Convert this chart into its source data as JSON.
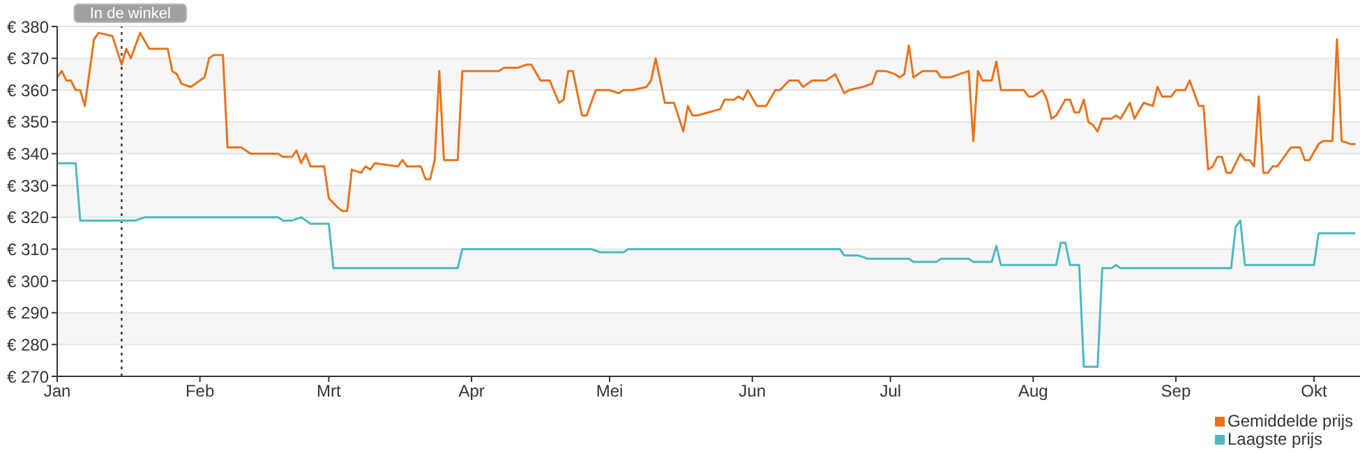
{
  "chart_data": {
    "type": "line",
    "xlim": [
      "--01-01",
      "--10-11"
    ],
    "ylim": [
      270,
      380
    ],
    "xticks": [
      {
        "value": "--01-01",
        "label": "Jan"
      },
      {
        "value": "--02-01",
        "label": "Feb"
      },
      {
        "value": "--03-01",
        "label": "Mrt"
      },
      {
        "value": "--04-01",
        "label": "Apr"
      },
      {
        "value": "--05-01",
        "label": "Mei"
      },
      {
        "value": "--06-01",
        "label": "Jun"
      },
      {
        "value": "--07-01",
        "label": "Jul"
      },
      {
        "value": "--08-01",
        "label": "Aug"
      },
      {
        "value": "--09-01",
        "label": "Sep"
      },
      {
        "value": "--10-01",
        "label": "Okt"
      }
    ],
    "yticks": [
      {
        "value": 270,
        "label": "€ 270"
      },
      {
        "value": 280,
        "label": "€ 280"
      },
      {
        "value": 290,
        "label": "€ 290"
      },
      {
        "value": 300,
        "label": "€ 300"
      },
      {
        "value": 310,
        "label": "€ 310"
      },
      {
        "value": 320,
        "label": "€ 320"
      },
      {
        "value": 330,
        "label": "€ 330"
      },
      {
        "value": 340,
        "label": "€ 340"
      },
      {
        "value": 350,
        "label": "€ 350"
      },
      {
        "value": 360,
        "label": "€ 360"
      },
      {
        "value": 370,
        "label": "€ 370"
      },
      {
        "value": 380,
        "label": "€ 380"
      }
    ],
    "grid": "y",
    "legend": "bottom right",
    "marker": "none",
    "line_style": "solid",
    "ref_lines": [
      {
        "axis": "x",
        "value": "--01-15",
        "label": "In de winkel",
        "color": "#333333",
        "line_style": "dotted"
      }
    ],
    "series": [
      {
        "name": "Gemiddelde prijs",
        "color": "#e8731c",
        "x": [
          "--01-01",
          "--01-02",
          "--01-03",
          "--01-04",
          "--01-05",
          "--01-06",
          "--01-07",
          "--01-09",
          "--01-10",
          "--01-13",
          "--01-15",
          "--01-16",
          "--01-17",
          "--01-18",
          "--01-19",
          "--01-21",
          "--01-25",
          "--01-26",
          "--01-27",
          "--01-28",
          "--01-30",
          "--02-01",
          "--02-02",
          "--02-03",
          "--02-04",
          "--02-06",
          "--02-07",
          "--02-10",
          "--02-12",
          "--02-18",
          "--02-19",
          "--02-21",
          "--02-22",
          "--02-23",
          "--02-24",
          "--02-25",
          "--02-28",
          "--03-01",
          "--03-03",
          "--03-04",
          "--03-05",
          "--03-06",
          "--03-08",
          "--03-09",
          "--03-10",
          "--03-11",
          "--03-16",
          "--03-17",
          "--03-18",
          "--03-21",
          "--03-22",
          "--03-23",
          "--03-24",
          "--03-25",
          "--03-26",
          "--03-29",
          "--03-30",
          "--04-07",
          "--04-08",
          "--04-11",
          "--04-13",
          "--04-14",
          "--04-16",
          "--04-18",
          "--04-20",
          "--04-21",
          "--04-22",
          "--04-23",
          "--04-25",
          "--04-26",
          "--04-28",
          "--05-01",
          "--05-03",
          "--05-04",
          "--05-06",
          "--05-09",
          "--05-10",
          "--05-11",
          "--05-13",
          "--05-15",
          "--05-17",
          "--05-18",
          "--05-19",
          "--05-20",
          "--05-25",
          "--05-26",
          "--05-28",
          "--05-29",
          "--05-30",
          "--05-31",
          "--06-02",
          "--06-04",
          "--06-06",
          "--06-07",
          "--06-09",
          "--06-11",
          "--06-12",
          "--06-14",
          "--06-17",
          "--06-19",
          "--06-21",
          "--06-22",
          "--06-25",
          "--06-27",
          "--06-28",
          "--06-30",
          "--07-02",
          "--07-03",
          "--07-04",
          "--07-05",
          "--07-06",
          "--07-08",
          "--07-11",
          "--07-12",
          "--07-14",
          "--07-16",
          "--07-18",
          "--07-19",
          "--07-20",
          "--07-21",
          "--07-23",
          "--07-24",
          "--07-25",
          "--07-30",
          "--07-31",
          "--08-01",
          "--08-03",
          "--08-04",
          "--08-05",
          "--08-06",
          "--08-08",
          "--08-09",
          "--08-10",
          "--08-11",
          "--08-12",
          "--08-13",
          "--08-14",
          "--08-15",
          "--08-16",
          "--08-18",
          "--08-19",
          "--08-20",
          "--08-22",
          "--08-23",
          "--08-25",
          "--08-27",
          "--08-28",
          "--08-29",
          "--08-31",
          "--09-01",
          "--09-03",
          "--09-04",
          "--09-06",
          "--09-07",
          "--09-08",
          "--09-09",
          "--09-10",
          "--09-11",
          "--09-12",
          "--09-13",
          "--09-15",
          "--09-16",
          "--09-17",
          "--09-18",
          "--09-19",
          "--09-20",
          "--09-21",
          "--09-22",
          "--09-23",
          "--09-26",
          "--09-28",
          "--09-29",
          "--09-30",
          "--10-02",
          "--10-03",
          "--10-05",
          "--10-06",
          "--10-07",
          "--10-09",
          "--10-10"
        ],
        "values": [
          364,
          366,
          363,
          363,
          360,
          360,
          355,
          376,
          378,
          377,
          368,
          373,
          370,
          374,
          378,
          373,
          373,
          366,
          365,
          362,
          361,
          363,
          364,
          370,
          371,
          371,
          342,
          342,
          340,
          340,
          339,
          339,
          341,
          337,
          340,
          336,
          336,
          326,
          323,
          322,
          322,
          335,
          334,
          336,
          335,
          337,
          336,
          338,
          336,
          336,
          332,
          332,
          338,
          366,
          338,
          338,
          366,
          366,
          367,
          367,
          368,
          368,
          363,
          363,
          356,
          357,
          366,
          366,
          352,
          352,
          360,
          360,
          359,
          360,
          360,
          361,
          363,
          370,
          356,
          356,
          347,
          355,
          352,
          352,
          354,
          357,
          357,
          358,
          357,
          360,
          355,
          355,
          360,
          360,
          363,
          363,
          361,
          363,
          363,
          365,
          359,
          360,
          361,
          362,
          366,
          366,
          365,
          364,
          365,
          374,
          364,
          366,
          366,
          364,
          364,
          365,
          366,
          344,
          366,
          363,
          363,
          369,
          360,
          360,
          358,
          358,
          360,
          357,
          351,
          352,
          357,
          357,
          353,
          353,
          357,
          350,
          349,
          347,
          351,
          351,
          352,
          351,
          356,
          351,
          356,
          355,
          361,
          358,
          358,
          360,
          360,
          363,
          355,
          355,
          335,
          336,
          339,
          339,
          334,
          334,
          340,
          338,
          338,
          336,
          358,
          334,
          334,
          336,
          336,
          342,
          342,
          338,
          338,
          343,
          344,
          344,
          376,
          344,
          343,
          343
        ]
      },
      {
        "name": "Laagste prijs",
        "color": "#4cb8c4",
        "x": [
          "--01-01",
          "--01-05",
          "--01-06",
          "--01-18",
          "--01-20",
          "--02-18",
          "--02-19",
          "--02-21",
          "--02-23",
          "--02-25",
          "--03-01",
          "--03-02",
          "--03-29",
          "--03-30",
          "--04-27",
          "--04-29",
          "--05-04",
          "--05-05",
          "--06-20",
          "--06-21",
          "--06-24",
          "--06-26",
          "--07-05",
          "--07-06",
          "--07-11",
          "--07-12",
          "--07-18",
          "--07-19",
          "--07-23",
          "--07-24",
          "--07-25",
          "--08-06",
          "--08-07",
          "--08-08",
          "--08-09",
          "--08-11",
          "--08-12",
          "--08-15",
          "--08-16",
          "--08-18",
          "--08-19",
          "--08-20",
          "--09-13",
          "--09-14",
          "--09-15",
          "--09-16",
          "--10-01",
          "--10-02",
          "--10-10"
        ],
        "values": [
          337,
          337,
          319,
          319,
          320,
          320,
          319,
          319,
          320,
          318,
          318,
          304,
          304,
          310,
          310,
          309,
          309,
          310,
          310,
          308,
          308,
          307,
          307,
          306,
          306,
          307,
          307,
          306,
          306,
          311,
          305,
          305,
          312,
          312,
          305,
          305,
          273,
          273,
          304,
          304,
          305,
          304,
          304,
          317,
          319,
          305,
          305,
          315,
          315
        ]
      }
    ]
  }
}
